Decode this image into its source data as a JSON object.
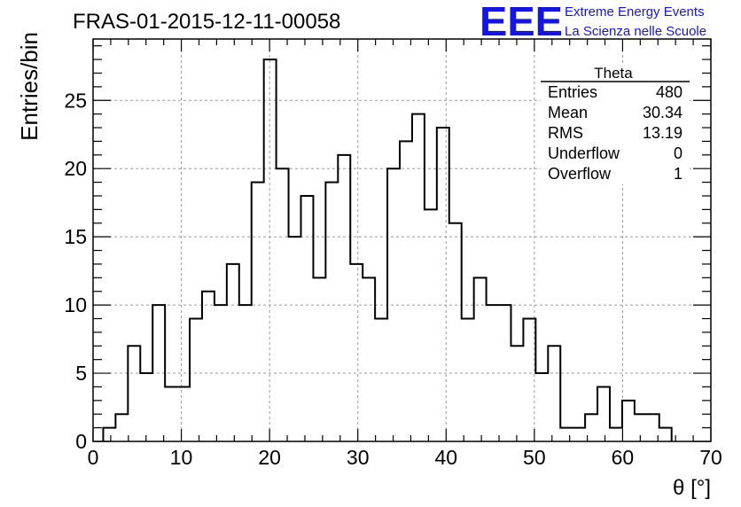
{
  "header": {
    "run_title": "FRAS-01-2015-12-11-00058",
    "logo_letters": "EEE",
    "logo_line1": "Extreme Energy Events",
    "logo_line2": "La Scienza nelle Scuole",
    "logo_color": "#1515e0"
  },
  "stats_box": {
    "title": "Theta",
    "rows": [
      {
        "label": "Entries",
        "value": "480"
      },
      {
        "label": "Mean",
        "value": "30.34"
      },
      {
        "label": "RMS",
        "value": "13.19"
      },
      {
        "label": "Underflow",
        "value": "0"
      },
      {
        "label": "Overflow",
        "value": "1"
      }
    ]
  },
  "chart_data": {
    "type": "bar",
    "style": "step-histogram",
    "title": "FRAS-01-2015-12-11-00058",
    "xlabel": "θ [°]",
    "ylabel": "Entries/bin",
    "xlim": [
      0,
      70
    ],
    "ylim": [
      0,
      29.5
    ],
    "grid": true,
    "bin_edges_start": 1.15,
    "bin_width": 1.4,
    "counts": [
      1,
      2,
      7,
      5,
      10,
      4,
      4,
      9,
      11,
      10,
      13,
      10,
      19,
      28,
      20,
      15,
      18,
      12,
      19,
      21,
      13,
      12,
      9,
      20,
      22,
      24,
      17,
      23,
      16,
      9,
      12,
      10,
      10,
      7,
      9,
      5,
      7,
      1,
      1,
      2,
      4,
      1,
      3,
      2,
      2,
      1
    ],
    "x_ticks": [
      "0",
      "10",
      "20",
      "30",
      "40",
      "50",
      "60",
      "70"
    ],
    "y_ticks": [
      "0",
      "5",
      "10",
      "15",
      "20",
      "25"
    ],
    "line_color": "#000000"
  }
}
